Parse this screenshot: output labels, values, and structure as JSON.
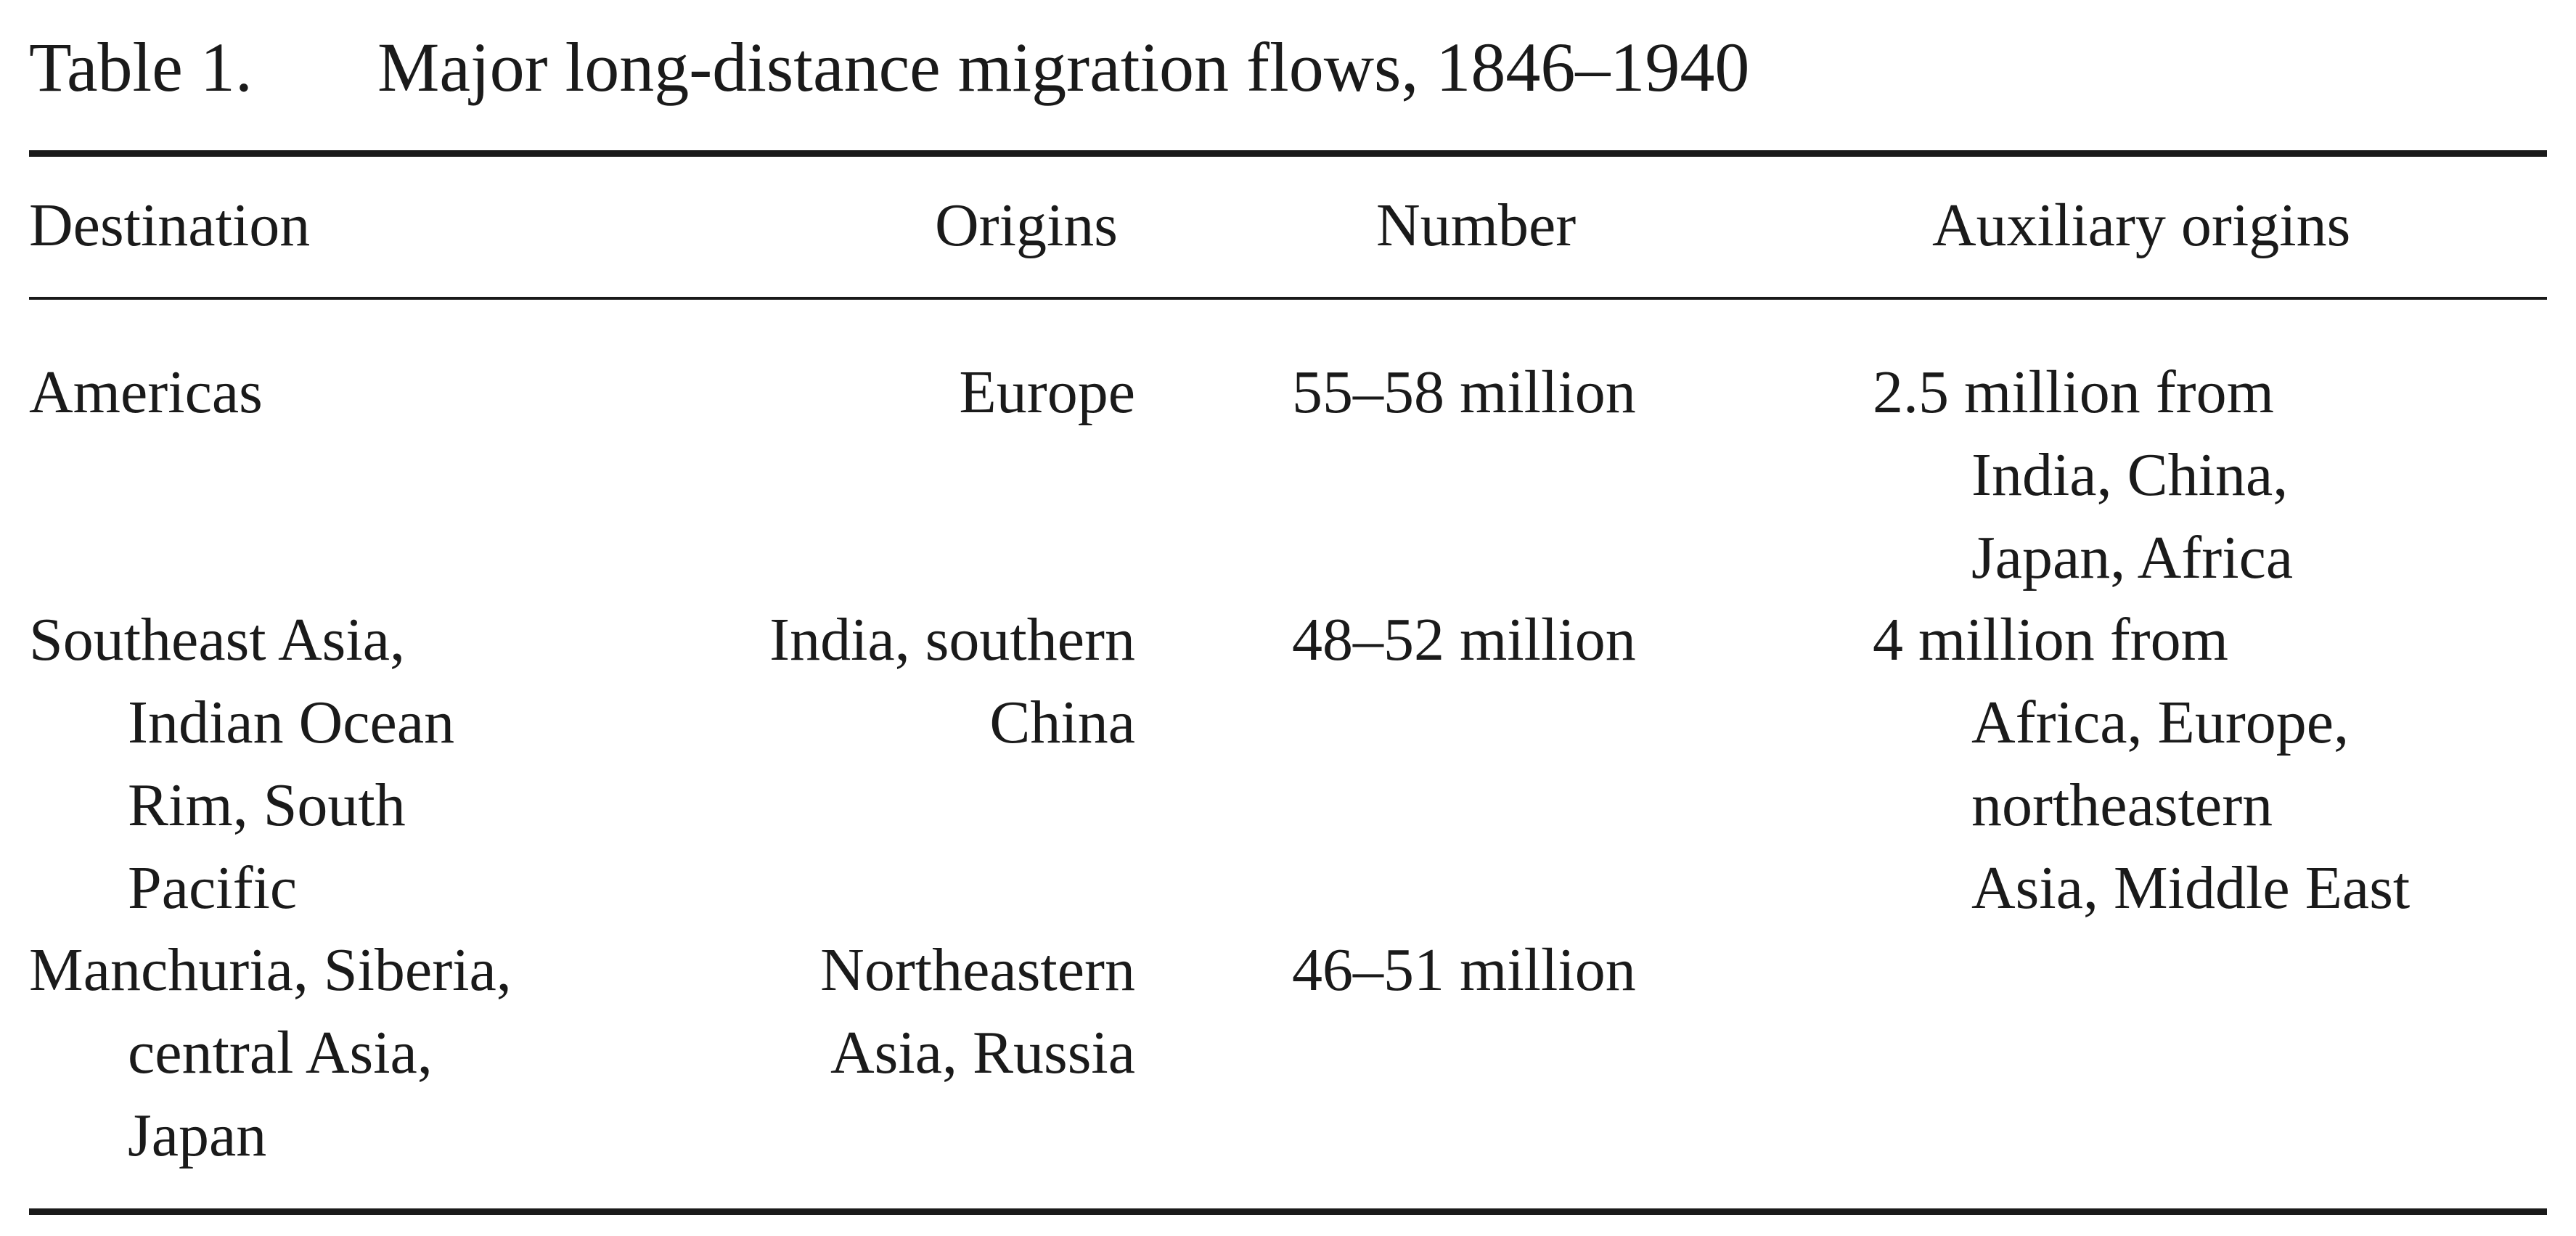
{
  "caption": {
    "label": "Table 1.",
    "title": "Major long-distance migration flows, 1846–1940"
  },
  "columns": {
    "destination": "Destination",
    "origins": "Origins",
    "number": "Number",
    "auxiliary": "Auxiliary origins"
  },
  "rows": [
    {
      "destination": [
        "Americas"
      ],
      "origins": [
        "Europe"
      ],
      "number": "55–58 million",
      "auxiliary": [
        "2.5 million from",
        "India, China,",
        "Japan, Africa"
      ]
    },
    {
      "destination": [
        "Southeast Asia,",
        "Indian Ocean",
        "Rim, South",
        "Pacific"
      ],
      "origins": [
        "India, southern",
        "China"
      ],
      "number": "48–52 million",
      "auxiliary": [
        "4 million from",
        "Africa, Europe,",
        "northeastern",
        "Asia, Middle East"
      ]
    },
    {
      "destination": [
        "Manchuria, Siberia,",
        "central Asia,",
        "Japan"
      ],
      "origins": [
        "Northeastern",
        "Asia, Russia"
      ],
      "number": "46–51 million",
      "auxiliary": []
    }
  ]
}
